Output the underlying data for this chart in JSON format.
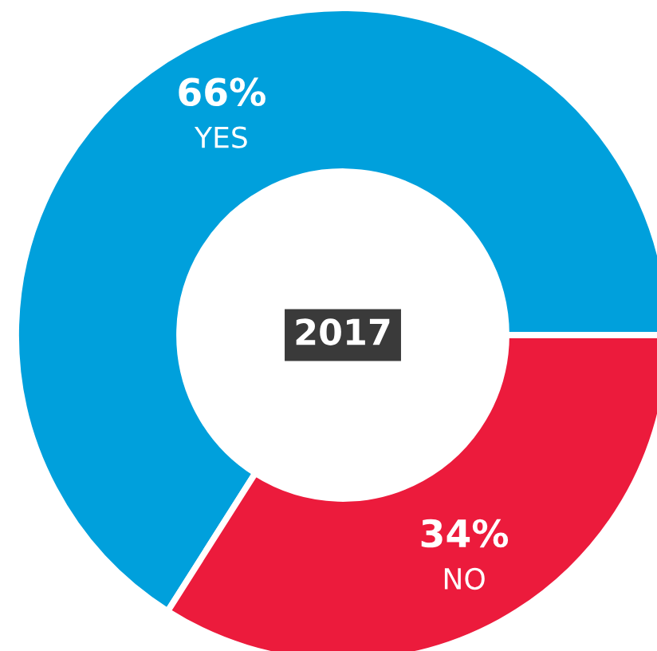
{
  "chart_data": {
    "type": "donut",
    "title": "2017",
    "categories": [
      "YES",
      "NO"
    ],
    "values": [
      66,
      34
    ],
    "colors": [
      "#00a0dc",
      "#ec1b3c"
    ],
    "value_labels": [
      "66%",
      "34%"
    ],
    "legend": false
  }
}
